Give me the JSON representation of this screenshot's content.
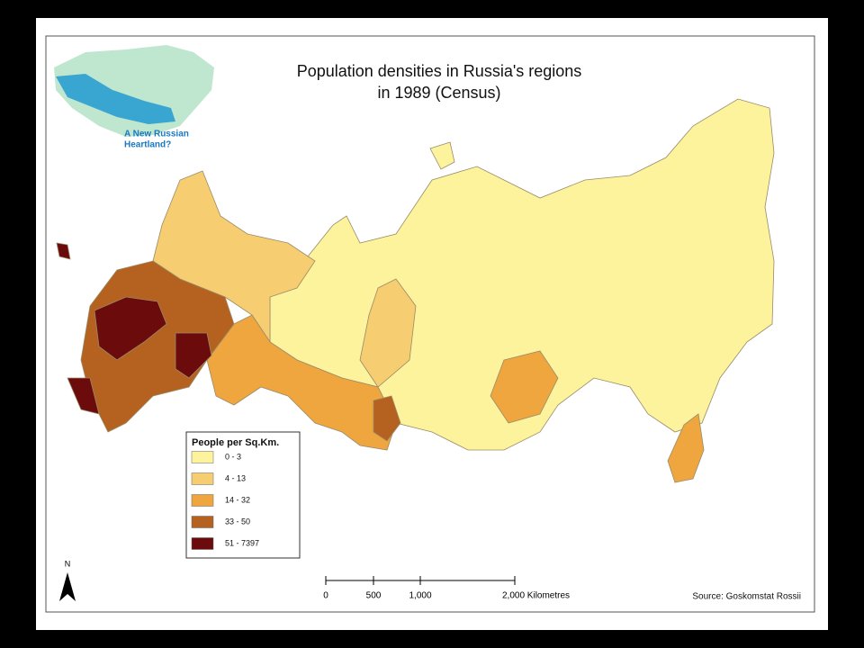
{
  "title": [
    "Population densities in Russia's regions",
    "in 1989 (Census)"
  ],
  "logo": {
    "text": [
      "A New Russian",
      "Heartland?"
    ]
  },
  "legend": {
    "title": "People per Sq.Km.",
    "items": [
      {
        "label": "0 - 3",
        "color": "#fcf39c"
      },
      {
        "label": "4 - 13",
        "color": "#f6cd70"
      },
      {
        "label": "14 - 32",
        "color": "#efa63e"
      },
      {
        "label": "33 - 50",
        "color": "#b5611f"
      },
      {
        "label": "51 - 7397",
        "color": "#6c0b0b"
      }
    ]
  },
  "scale_bar": {
    "labels": [
      "0",
      "500",
      "1,000",
      "2,000 Kilometres"
    ]
  },
  "north_arrow": "N",
  "source": "Source: Goskomstat Rossii"
}
